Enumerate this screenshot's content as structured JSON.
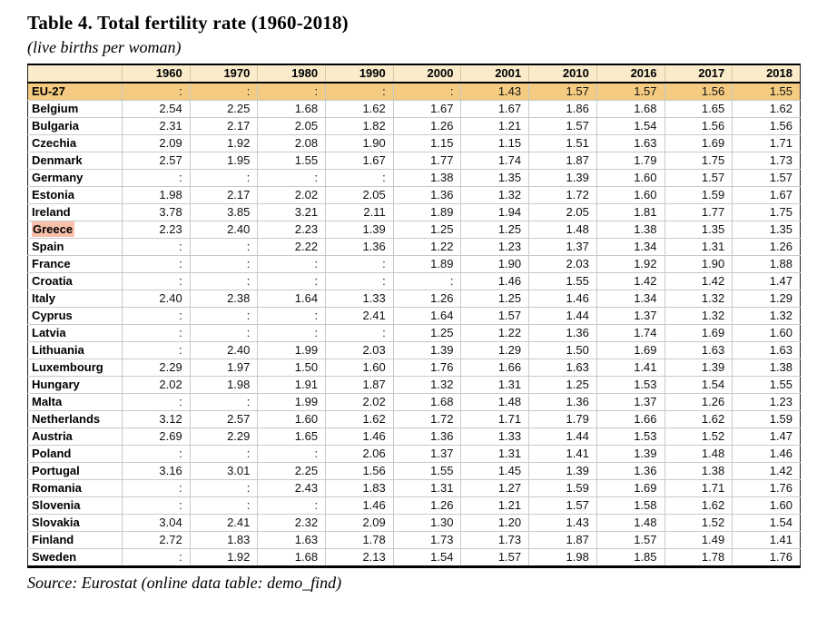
{
  "title": "Table 4. Total fertility rate (1960-2018)",
  "subtitle": "(live births per woman)",
  "source": "Source: Eurostat (online data table: demo_find)",
  "colors": {
    "header_bg": "#faebcb",
    "eu_row_bg": "#f5cb82",
    "greece_highlight": "#f8bfa9",
    "grid_line": "#c9c9c9",
    "border": "#000000"
  },
  "table": {
    "year_headers": [
      "1960",
      "1970",
      "1980",
      "1990",
      "2000",
      "2001",
      "2010",
      "2016",
      "2017",
      "2018"
    ],
    "eu_row": {
      "label": "EU-27",
      "values": [
        ":",
        ":",
        ":",
        ":",
        ":",
        "1.43",
        "1.57",
        "1.57",
        "1.56",
        "1.55"
      ]
    },
    "rows": [
      {
        "label": "Belgium",
        "highlight": false,
        "values": [
          "2.54",
          "2.25",
          "1.68",
          "1.62",
          "1.67",
          "1.67",
          "1.86",
          "1.68",
          "1.65",
          "1.62"
        ]
      },
      {
        "label": "Bulgaria",
        "highlight": false,
        "values": [
          "2.31",
          "2.17",
          "2.05",
          "1.82",
          "1.26",
          "1.21",
          "1.57",
          "1.54",
          "1.56",
          "1.56"
        ]
      },
      {
        "label": "Czechia",
        "highlight": false,
        "values": [
          "2.09",
          "1.92",
          "2.08",
          "1.90",
          "1.15",
          "1.15",
          "1.51",
          "1.63",
          "1.69",
          "1.71"
        ]
      },
      {
        "label": "Denmark",
        "highlight": false,
        "values": [
          "2.57",
          "1.95",
          "1.55",
          "1.67",
          "1.77",
          "1.74",
          "1.87",
          "1.79",
          "1.75",
          "1.73"
        ]
      },
      {
        "label": "Germany",
        "highlight": false,
        "values": [
          ":",
          ":",
          ":",
          ":",
          "1.38",
          "1.35",
          "1.39",
          "1.60",
          "1.57",
          "1.57"
        ]
      },
      {
        "label": "Estonia",
        "highlight": false,
        "values": [
          "1.98",
          "2.17",
          "2.02",
          "2.05",
          "1.36",
          "1.32",
          "1.72",
          "1.60",
          "1.59",
          "1.67"
        ]
      },
      {
        "label": "Ireland",
        "highlight": false,
        "values": [
          "3.78",
          "3.85",
          "3.21",
          "2.11",
          "1.89",
          "1.94",
          "2.05",
          "1.81",
          "1.77",
          "1.75"
        ]
      },
      {
        "label": "Greece",
        "highlight": true,
        "values": [
          "2.23",
          "2.40",
          "2.23",
          "1.39",
          "1.25",
          "1.25",
          "1.48",
          "1.38",
          "1.35",
          "1.35"
        ]
      },
      {
        "label": "Spain",
        "highlight": false,
        "values": [
          ":",
          ":",
          "2.22",
          "1.36",
          "1.22",
          "1.23",
          "1.37",
          "1.34",
          "1.31",
          "1.26"
        ]
      },
      {
        "label": "France",
        "highlight": false,
        "values": [
          ":",
          ":",
          ":",
          ":",
          "1.89",
          "1.90",
          "2.03",
          "1.92",
          "1.90",
          "1.88"
        ]
      },
      {
        "label": "Croatia",
        "highlight": false,
        "values": [
          ":",
          ":",
          ":",
          ":",
          ":",
          "1.46",
          "1.55",
          "1.42",
          "1.42",
          "1.47"
        ]
      },
      {
        "label": "Italy",
        "highlight": false,
        "values": [
          "2.40",
          "2.38",
          "1.64",
          "1.33",
          "1.26",
          "1.25",
          "1.46",
          "1.34",
          "1.32",
          "1.29"
        ]
      },
      {
        "label": "Cyprus",
        "highlight": false,
        "values": [
          ":",
          ":",
          ":",
          "2.41",
          "1.64",
          "1.57",
          "1.44",
          "1.37",
          "1.32",
          "1.32"
        ]
      },
      {
        "label": "Latvia",
        "highlight": false,
        "values": [
          ":",
          ":",
          ":",
          ":",
          "1.25",
          "1.22",
          "1.36",
          "1.74",
          "1.69",
          "1.60"
        ]
      },
      {
        "label": "Lithuania",
        "highlight": false,
        "values": [
          ":",
          "2.40",
          "1.99",
          "2.03",
          "1.39",
          "1.29",
          "1.50",
          "1.69",
          "1.63",
          "1.63"
        ]
      },
      {
        "label": "Luxembourg",
        "highlight": false,
        "values": [
          "2.29",
          "1.97",
          "1.50",
          "1.60",
          "1.76",
          "1.66",
          "1.63",
          "1.41",
          "1.39",
          "1.38"
        ]
      },
      {
        "label": "Hungary",
        "highlight": false,
        "values": [
          "2.02",
          "1.98",
          "1.91",
          "1.87",
          "1.32",
          "1.31",
          "1.25",
          "1.53",
          "1.54",
          "1.55"
        ]
      },
      {
        "label": "Malta",
        "highlight": false,
        "values": [
          ":",
          ":",
          "1.99",
          "2.02",
          "1.68",
          "1.48",
          "1.36",
          "1.37",
          "1.26",
          "1.23"
        ]
      },
      {
        "label": "Netherlands",
        "highlight": false,
        "values": [
          "3.12",
          "2.57",
          "1.60",
          "1.62",
          "1.72",
          "1.71",
          "1.79",
          "1.66",
          "1.62",
          "1.59"
        ]
      },
      {
        "label": "Austria",
        "highlight": false,
        "values": [
          "2.69",
          "2.29",
          "1.65",
          "1.46",
          "1.36",
          "1.33",
          "1.44",
          "1.53",
          "1.52",
          "1.47"
        ]
      },
      {
        "label": "Poland",
        "highlight": false,
        "values": [
          ":",
          ":",
          ":",
          "2.06",
          "1.37",
          "1.31",
          "1.41",
          "1.39",
          "1.48",
          "1.46"
        ]
      },
      {
        "label": "Portugal",
        "highlight": false,
        "values": [
          "3.16",
          "3.01",
          "2.25",
          "1.56",
          "1.55",
          "1.45",
          "1.39",
          "1.36",
          "1.38",
          "1.42"
        ]
      },
      {
        "label": "Romania",
        "highlight": false,
        "values": [
          ":",
          ":",
          "2.43",
          "1.83",
          "1.31",
          "1.27",
          "1.59",
          "1.69",
          "1.71",
          "1.76"
        ]
      },
      {
        "label": "Slovenia",
        "highlight": false,
        "values": [
          ":",
          ":",
          ":",
          "1.46",
          "1.26",
          "1.21",
          "1.57",
          "1.58",
          "1.62",
          "1.60"
        ]
      },
      {
        "label": "Slovakia",
        "highlight": false,
        "values": [
          "3.04",
          "2.41",
          "2.32",
          "2.09",
          "1.30",
          "1.20",
          "1.43",
          "1.48",
          "1.52",
          "1.54"
        ]
      },
      {
        "label": "Finland",
        "highlight": false,
        "values": [
          "2.72",
          "1.83",
          "1.63",
          "1.78",
          "1.73",
          "1.73",
          "1.87",
          "1.57",
          "1.49",
          "1.41"
        ]
      },
      {
        "label": "Sweden",
        "highlight": false,
        "values": [
          ":",
          "1.92",
          "1.68",
          "2.13",
          "1.54",
          "1.57",
          "1.98",
          "1.85",
          "1.78",
          "1.76"
        ]
      }
    ]
  }
}
